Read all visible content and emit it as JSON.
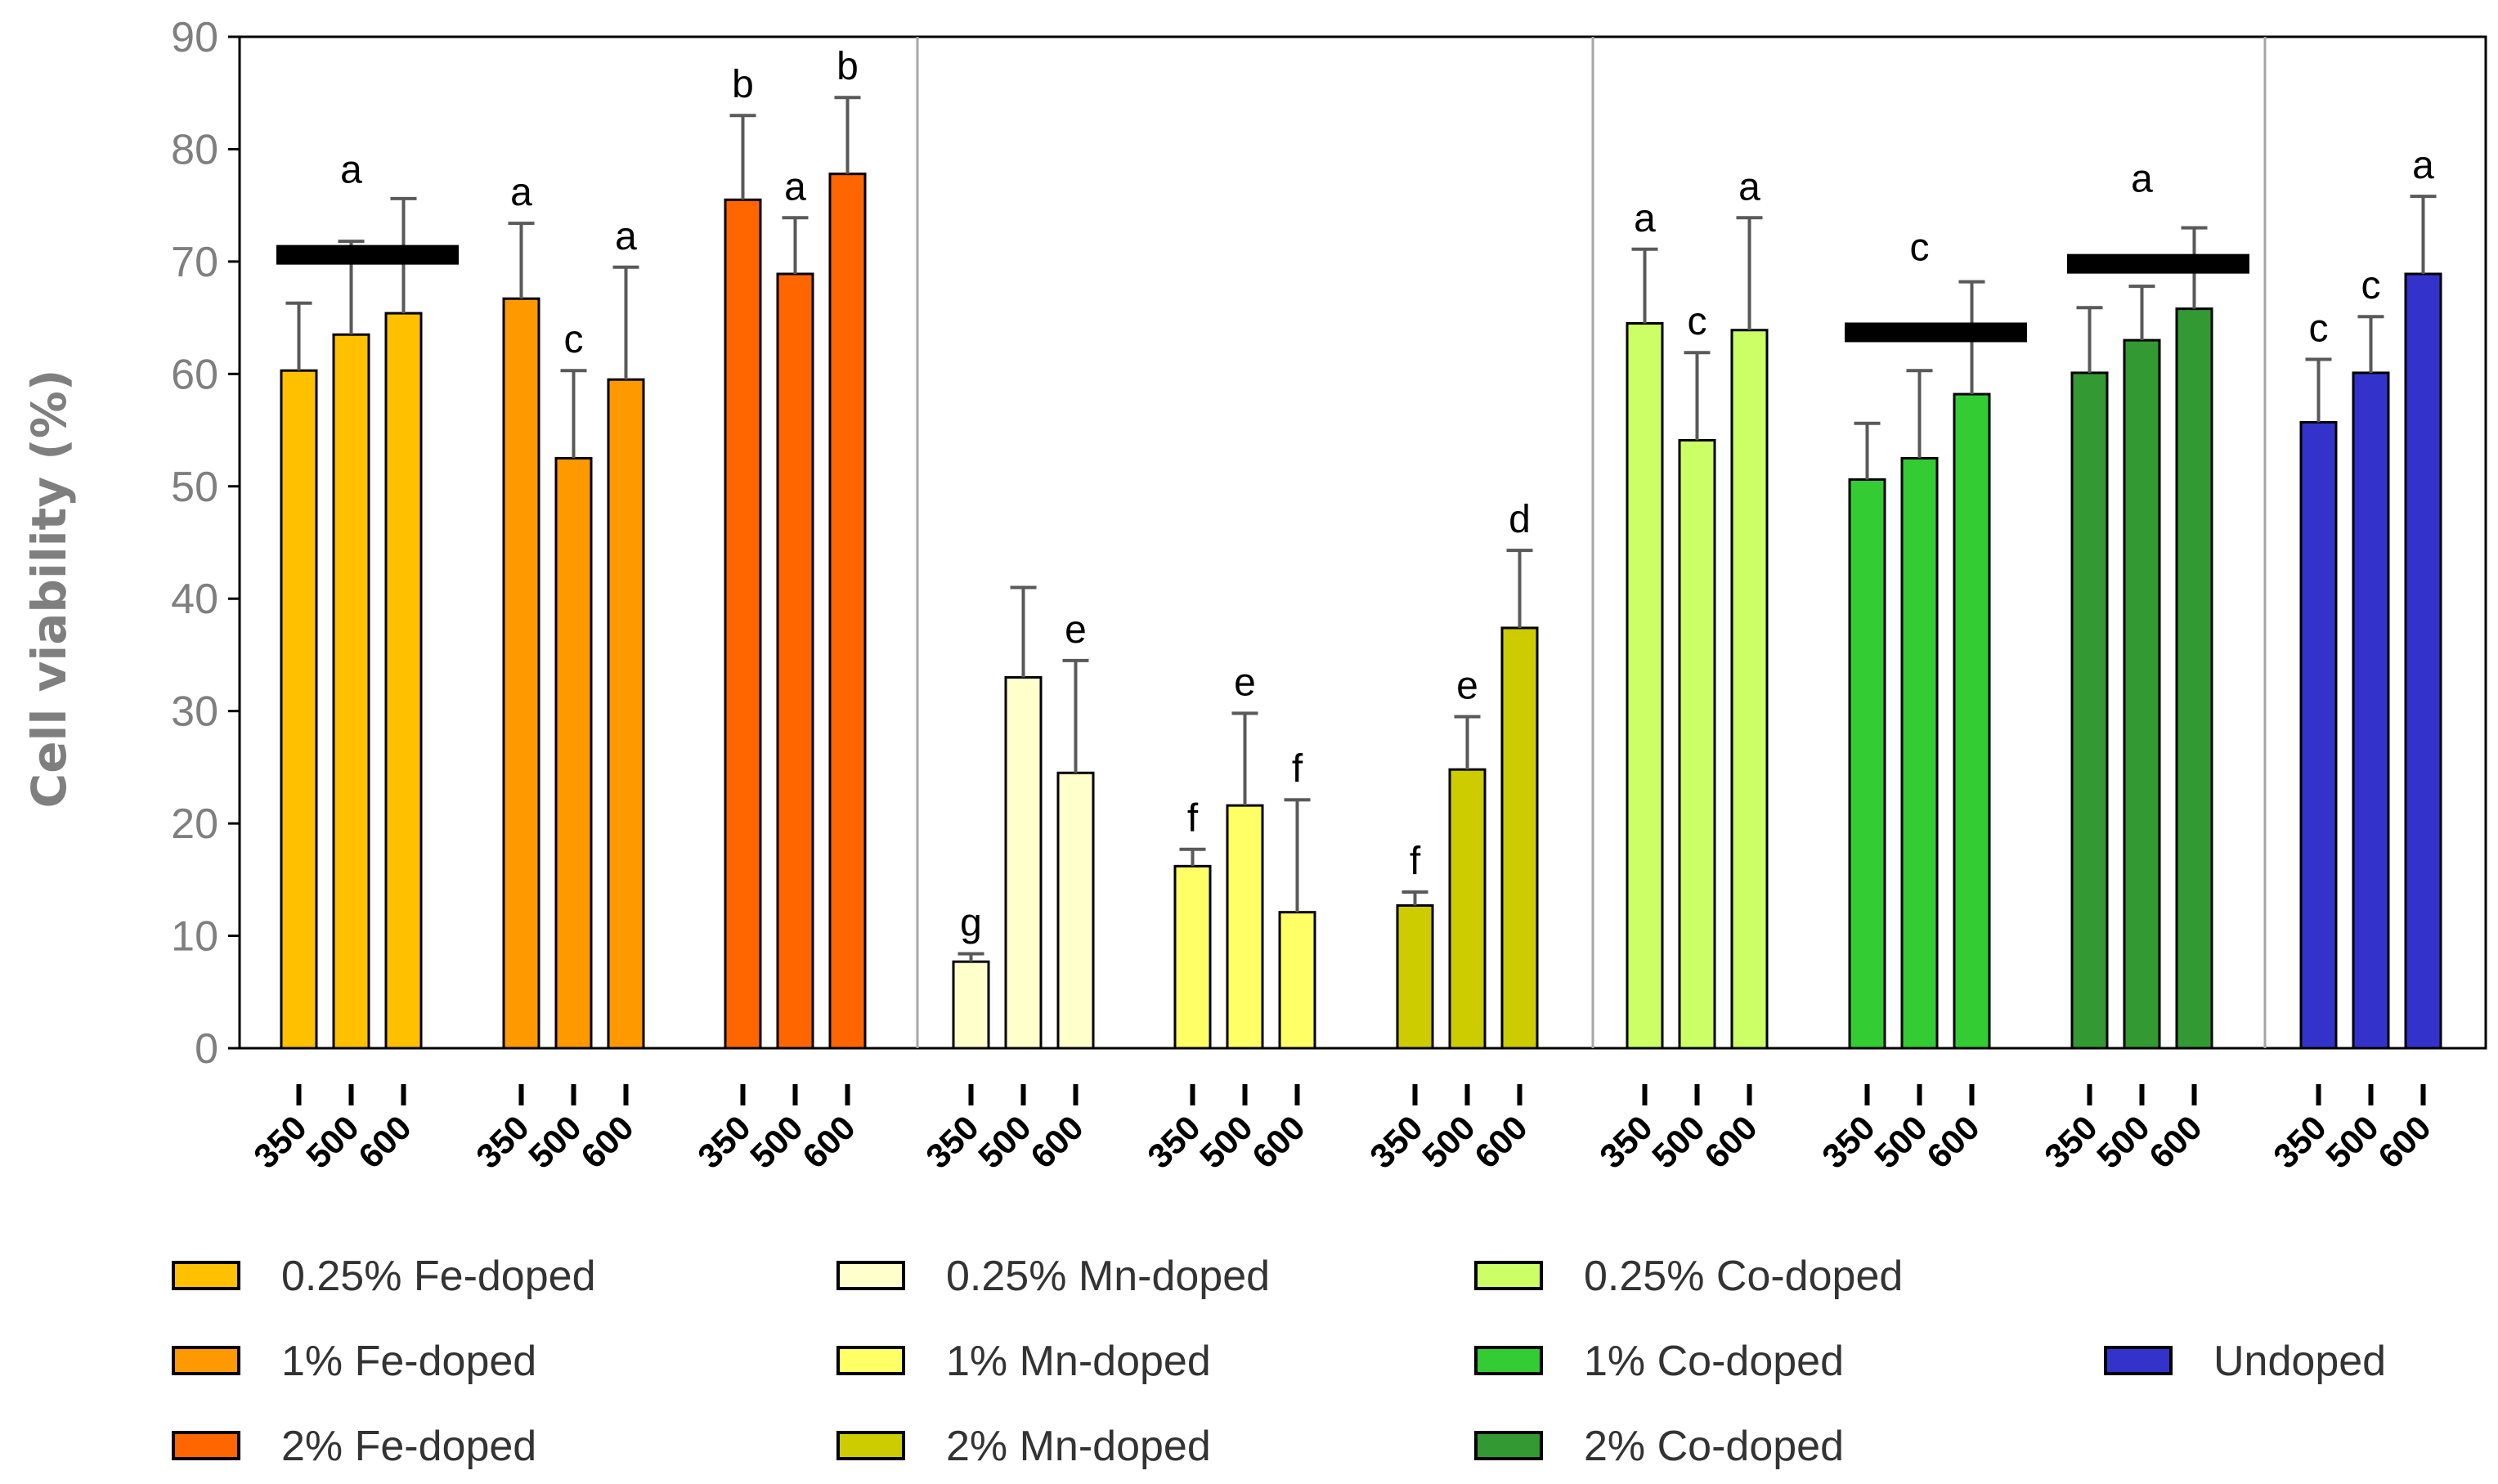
{
  "chart_data": {
    "type": "bar",
    "title": "",
    "xlabel": "",
    "ylabel": "Cell viability (%)",
    "ylim": [
      0,
      90
    ],
    "yticks": [
      0,
      10,
      20,
      30,
      40,
      50,
      60,
      70,
      80,
      90
    ],
    "grid": false,
    "legend_position": "bottom",
    "temperatures": [
      "350",
      "500",
      "600"
    ],
    "series": [
      {
        "name": "0.25% Fe-doped",
        "color": "#FFC000",
        "values": [
          60.3,
          63.5,
          65.4
        ],
        "errors": [
          6.0,
          8.3,
          10.2
        ],
        "labels": [
          "",
          "",
          ""
        ],
        "group_label": "a"
      },
      {
        "name": "1% Fe-doped",
        "color": "#FF9900",
        "values": [
          66.7,
          52.5,
          59.5
        ],
        "errors": [
          6.7,
          7.8,
          10.0
        ],
        "labels": [
          "a",
          "c",
          "a"
        ],
        "group_label": ""
      },
      {
        "name": "2% Fe-doped",
        "color": "#FF6600",
        "values": [
          75.5,
          68.9,
          77.8
        ],
        "errors": [
          7.5,
          5.0,
          6.8
        ],
        "labels": [
          "b",
          "a",
          "b"
        ],
        "group_label": ""
      },
      {
        "name": "0.25% Mn-doped",
        "color": "#FFFFCC",
        "values": [
          7.7,
          33.0,
          24.5
        ],
        "errors": [
          0.7,
          8.0,
          10.0
        ],
        "labels": [
          "g",
          "",
          "e"
        ],
        "group_label": ""
      },
      {
        "name": "1% Mn-doped",
        "color": "#FFFF66",
        "values": [
          16.2,
          21.6,
          12.1
        ],
        "errors": [
          1.5,
          8.2,
          10.0
        ],
        "labels": [
          "f",
          "e",
          "f"
        ],
        "group_label": ""
      },
      {
        "name": "2% Mn-doped",
        "color": "#CCCC00",
        "values": [
          12.7,
          24.8,
          37.4
        ],
        "errors": [
          1.2,
          4.7,
          6.9
        ],
        "labels": [
          "f",
          "e",
          "d"
        ],
        "group_label": ""
      },
      {
        "name": "0.25% Co-doped",
        "color": "#CCFF66",
        "values": [
          64.5,
          54.1,
          63.9
        ],
        "errors": [
          6.6,
          7.8,
          10.0
        ],
        "labels": [
          "a",
          "c",
          "a"
        ],
        "group_label": ""
      },
      {
        "name": "1% Co-doped",
        "color": "#33CC33",
        "values": [
          50.6,
          52.5,
          58.2
        ],
        "errors": [
          5.0,
          7.8,
          10.0
        ],
        "labels": [
          "",
          "",
          ""
        ],
        "group_label": "c"
      },
      {
        "name": "2% Co-doped",
        "color": "#339933",
        "values": [
          60.1,
          63.0,
          65.8
        ],
        "errors": [
          5.8,
          4.8,
          7.2
        ],
        "labels": [
          "",
          "",
          ""
        ],
        "group_label": "a"
      },
      {
        "name": "Undoped",
        "color": "#3333CC",
        "values": [
          55.7,
          60.1,
          68.9
        ],
        "errors": [
          5.6,
          5.0,
          6.9
        ],
        "labels": [
          "c",
          "c",
          "a"
        ],
        "group_label": ""
      }
    ],
    "group_bar_values": {
      "0": 70.6,
      "7": 63.7,
      "8": 69.8
    }
  }
}
